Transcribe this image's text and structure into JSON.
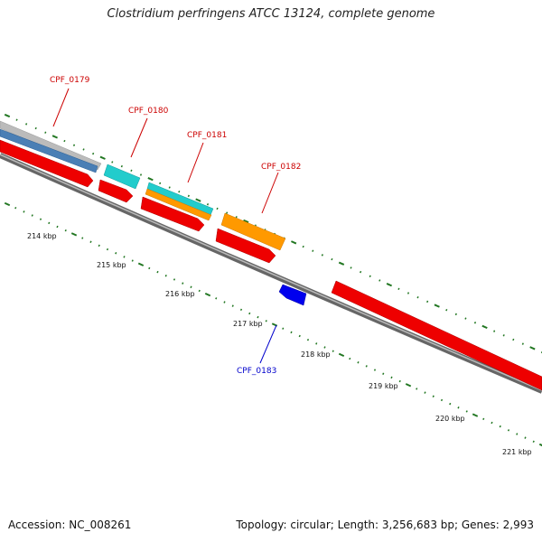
{
  "title": "Clostridium perfringens ATCC 13124, complete genome",
  "footer": {
    "accession": "Accession: NC_008261",
    "topology": "Topology: circular; Length: 3,256,683 bp; Genes: 2,993"
  },
  "ruler_labels": [
    "214 kbp",
    "215 kbp",
    "216 kbp",
    "217 kbp",
    "218 kbp",
    "219 kbp",
    "220 kbp",
    "221 kbp"
  ],
  "gene_labels": [
    {
      "text": "CPF_0179",
      "color": "#cc0000"
    },
    {
      "text": "CPF_0180",
      "color": "#cc0000"
    },
    {
      "text": "CPF_0181",
      "color": "#cc0000"
    },
    {
      "text": "CPF_0182",
      "color": "#cc0000"
    },
    {
      "text": "CPF_0183",
      "color": "#0000cc"
    }
  ],
  "colors": {
    "backbone": "#7a7a7a",
    "cds_red": "#ee0000",
    "cds_cyan": "#22cccc",
    "cds_orange": "#ff9900",
    "cds_blue": "#0000ee",
    "trna_steel": "#4a7fb5",
    "rrna_gray": "#bbbbbb",
    "tick_green": "#227722"
  }
}
